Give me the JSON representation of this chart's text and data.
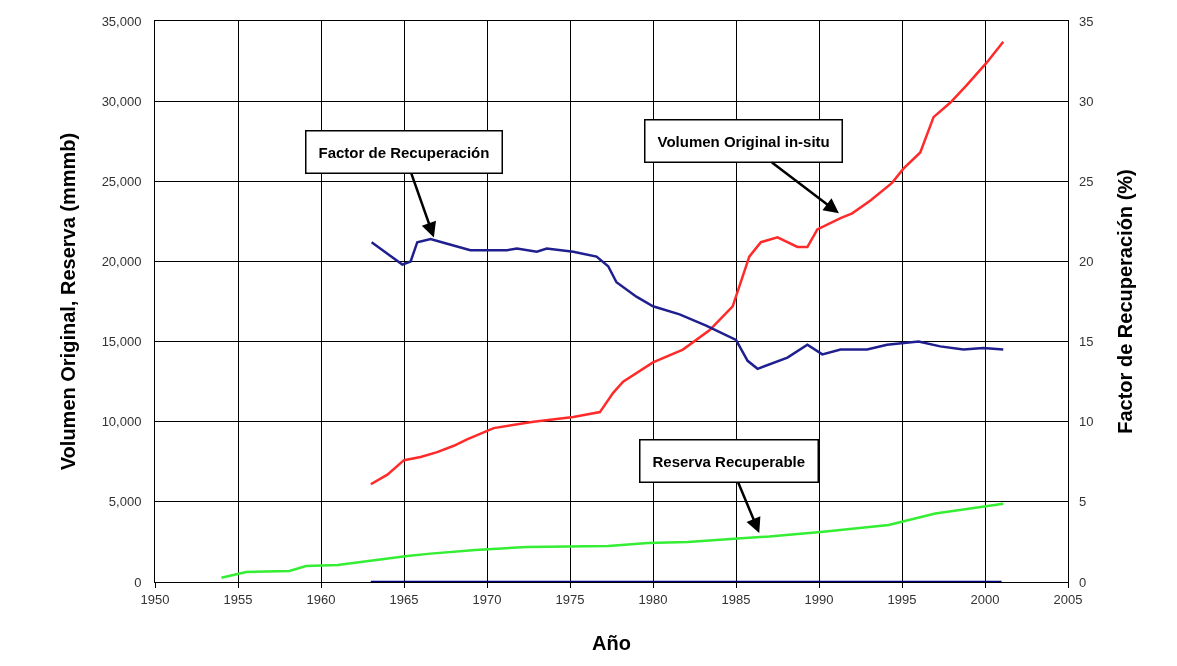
{
  "chart_data": {
    "type": "line",
    "xlabel": "Año",
    "ylabel": "Volumen Original, Reserva (mmmb)",
    "y2label": "Factor de Recuperación (%)",
    "xlim": [
      1950,
      2005
    ],
    "xticks": [
      1950,
      1955,
      1960,
      1965,
      1970,
      1975,
      1980,
      1985,
      1990,
      1995,
      2000,
      2005
    ],
    "ylim": [
      0,
      35000
    ],
    "yticks": [
      0,
      {
        "value": 5000,
        "label": "5,000"
      },
      {
        "value": 10000,
        "label": "10,000"
      },
      {
        "value": 15000,
        "label": "15,000"
      },
      {
        "value": 20000,
        "label": "20,000"
      },
      {
        "value": 25000,
        "label": "25,000"
      },
      {
        "value": 30000,
        "label": "30,000"
      },
      {
        "value": 35000,
        "label": "35,000"
      }
    ],
    "y2lim": [
      0,
      35
    ],
    "y2ticks": [
      0,
      5,
      10,
      15,
      20,
      25,
      30,
      35
    ],
    "grid": true,
    "marker": "none",
    "line_style": "solid",
    "series": [
      {
        "color": "#ff2a2a",
        "x": [
          1963,
          1964,
          1965,
          1966,
          1967,
          1968,
          1968.8,
          1970.4,
          1972.8,
          1975.2,
          1976.8,
          1977.6,
          1978.2,
          1980,
          1981.8,
          1983.4,
          1984.8,
          1985.8,
          1986.5,
          1987.5,
          1988.7,
          1989.3,
          1989.9,
          1991.3,
          1992,
          1993.1,
          1994.4,
          1995.1,
          1996.1,
          1996.9,
          1997.9,
          1998.9,
          2000.1,
          2001.1
        ],
        "values": [
          6100,
          6700,
          7600,
          7800,
          8100,
          8500,
          8900,
          9600,
          10000,
          10300,
          10600,
          11800,
          12500,
          13700,
          14500,
          15700,
          17200,
          20300,
          21200,
          21500,
          20900,
          20900,
          22000,
          22700,
          23000,
          23800,
          24900,
          25800,
          26800,
          29000,
          29900,
          31000,
          32400,
          33700
        ]
      },
      {
        "color": "#33ee33",
        "x": [
          1954,
          1955.5,
          1958.1,
          1959.1,
          1961,
          1965.2,
          1966.6,
          1969.3,
          1972.4,
          1977.3,
          1979.7,
          1982.1,
          1984.9,
          1987,
          1990.1,
          1994.2,
          1997,
          2001.1
        ],
        "values": [
          260,
          620,
          690,
          1000,
          1060,
          1620,
          1770,
          2000,
          2180,
          2250,
          2430,
          2500,
          2700,
          2840,
          3120,
          3560,
          4270,
          4880
        ]
      },
      {
        "color": "#000080",
        "x": [
          1963,
          2001
        ],
        "values": [
          0,
          0
        ]
      },
      {
        "color": "#1f1f8f",
        "axis": "y2",
        "x": [
          1963.05,
          1964.9,
          1965.4,
          1965.8,
          1966.6,
          1967.6,
          1969,
          1971.2,
          1971.8,
          1973,
          1973.6,
          1975.2,
          1976.6,
          1977.3,
          1977.8,
          1979,
          1980,
          1981.6,
          1983.2,
          1985,
          1985.7,
          1986.3,
          1988.1,
          1989.3,
          1990.2,
          1991.3,
          1992.9,
          1994.1,
          1996,
          1997.3,
          1998.7,
          1999.9,
          2001.1
        ],
        "values": [
          21.2,
          19.8,
          20,
          21.2,
          21.4,
          21.1,
          20.7,
          20.7,
          20.8,
          20.6,
          20.8,
          20.6,
          20.3,
          19.7,
          18.7,
          17.8,
          17.2,
          16.7,
          16,
          15.1,
          13.8,
          13.3,
          14,
          14.8,
          14.2,
          14.5,
          14.5,
          14.8,
          15,
          14.7,
          14.5,
          14.6,
          14.5
        ]
      }
    ],
    "annotations": [
      {
        "text": "Factor de Recuperación",
        "x": 1966.8,
        "y": 21500
      },
      {
        "text": "Volumen Original in-situ",
        "x": 1991.2,
        "y": 23000
      },
      {
        "text": "Reserva Recuperable",
        "x": 1986.4,
        "y": 3060
      }
    ]
  }
}
